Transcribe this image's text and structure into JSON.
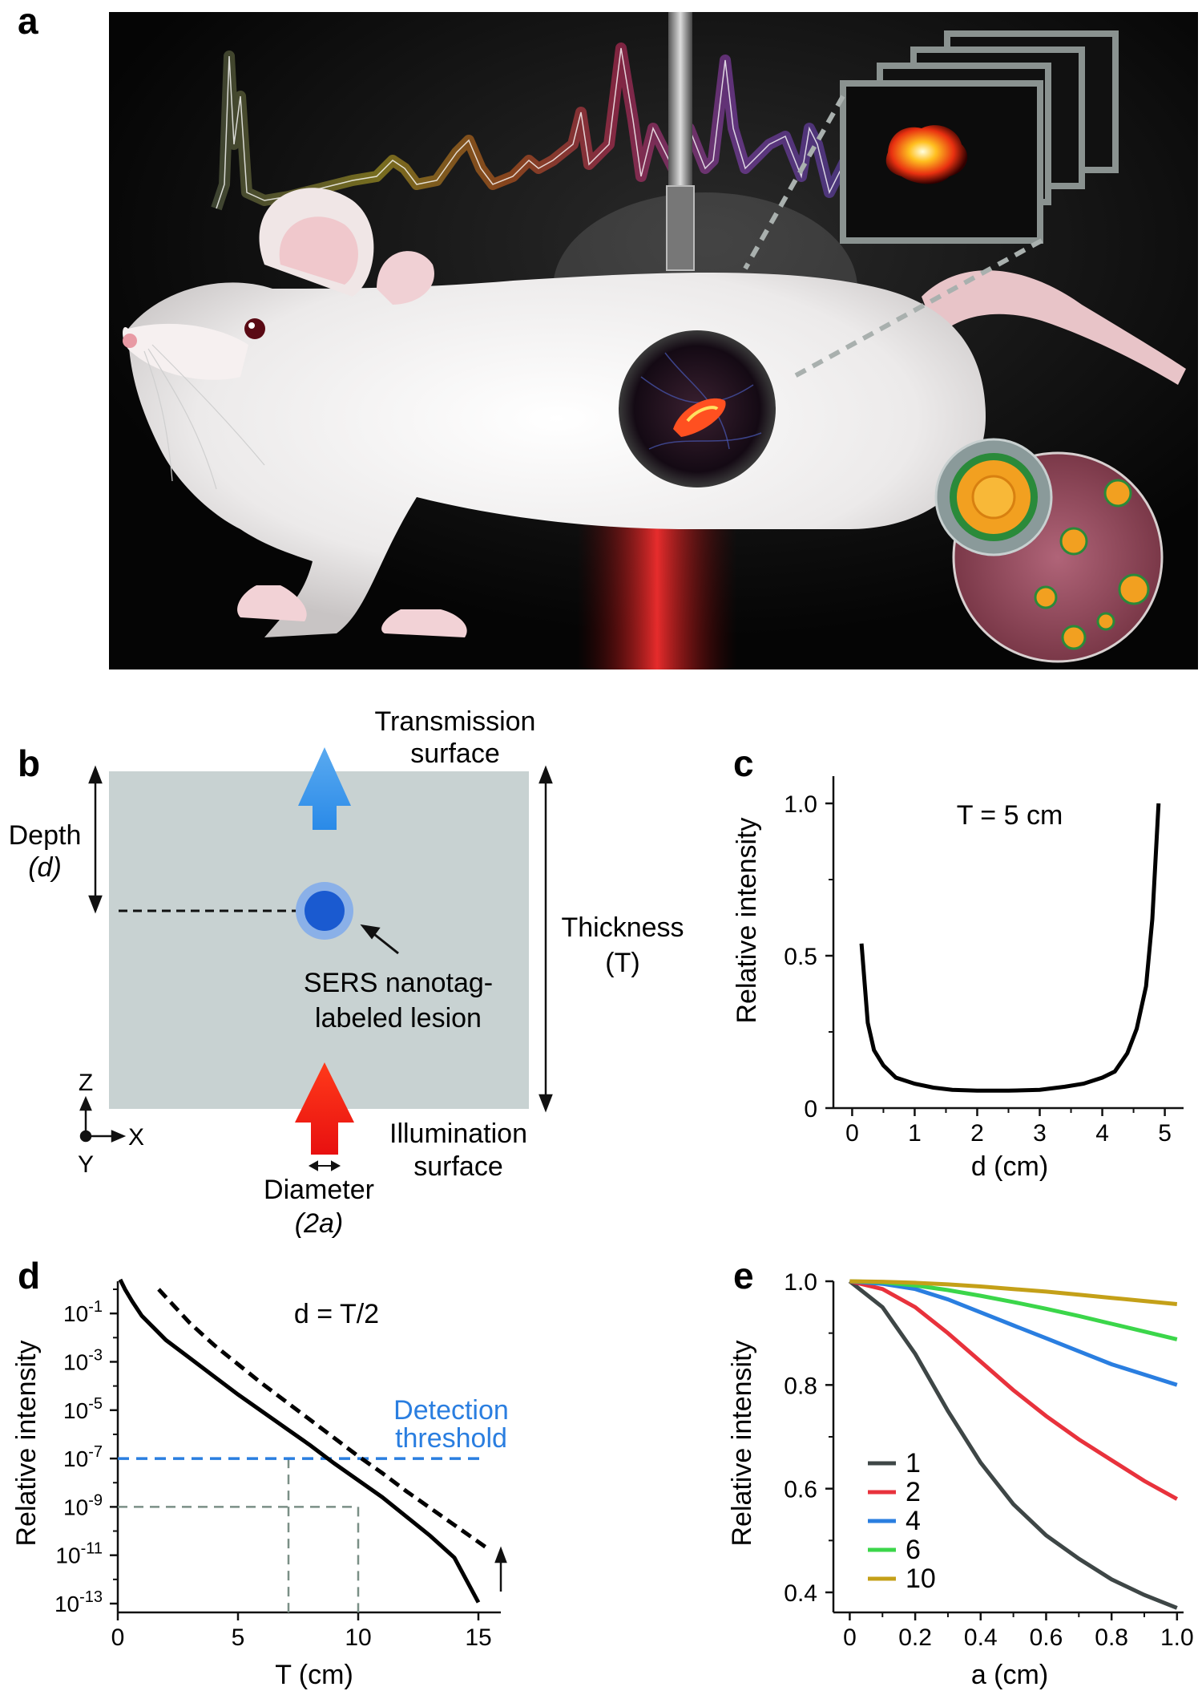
{
  "panel_a": {
    "letter": "a"
  },
  "panel_b": {
    "letter": "b",
    "transmission_label": [
      "Transmission",
      "surface"
    ],
    "depth_label": [
      "Depth",
      "(d)"
    ],
    "thickness_label": [
      "Thickness",
      "(T)"
    ],
    "lesion_label": [
      "SERS nanotag-",
      "labeled lesion"
    ],
    "illumination_label": [
      "Illumination",
      "surface"
    ],
    "diameter_label": [
      "Diameter",
      "(2a)"
    ],
    "axis_z": "Z",
    "axis_x": "X",
    "axis_y": "Y"
  },
  "chart_data": [
    {
      "panel": "c",
      "type": "line",
      "annotation": "T = 5 cm",
      "xlabel": "d (cm)",
      "ylabel": "Relative intensity",
      "xlim": [
        -0.3,
        5.3
      ],
      "ylim": [
        0,
        1.1
      ],
      "xticks": [
        "0",
        "1",
        "2",
        "3",
        "4",
        "5"
      ],
      "yticks": [
        "0",
        "0.5",
        "1.0"
      ],
      "series": [
        {
          "color": "#000000",
          "x": [
            0.15,
            0.25,
            0.35,
            0.5,
            0.7,
            1.0,
            1.3,
            1.6,
            2.0,
            2.5,
            3.0,
            3.4,
            3.7,
            4.0,
            4.2,
            4.4,
            4.55,
            4.7,
            4.8,
            4.9
          ],
          "values": [
            0.54,
            0.28,
            0.19,
            0.14,
            0.1,
            0.08,
            0.067,
            0.06,
            0.057,
            0.057,
            0.06,
            0.07,
            0.08,
            0.1,
            0.12,
            0.18,
            0.26,
            0.4,
            0.62,
            1.0
          ]
        }
      ]
    },
    {
      "panel": "d",
      "type": "line",
      "annotation": "d = T/2",
      "xlabel": "T (cm)",
      "ylabel": "Relative intensity",
      "log_y": true,
      "xlim": [
        0,
        16
      ],
      "ylim_log10": [
        -13,
        0.4
      ],
      "xticks": [
        "0",
        "5",
        "10",
        "15"
      ],
      "yticks": [
        "10-1",
        "10-3",
        "10-5",
        "10-7",
        "10-9",
        "10-11",
        "10-13"
      ],
      "threshold_label": [
        "Detection",
        "threshold"
      ],
      "threshold_value": 1e-07,
      "series": [
        {
          "style": "solid",
          "color": "#000000",
          "x": [
            0.1,
            0.3,
            0.6,
            1,
            1.5,
            2,
            3,
            4,
            5,
            6,
            7,
            8,
            9,
            10,
            11,
            12,
            13,
            14,
            15
          ],
          "log10_values": [
            0.4,
            0,
            -0.5,
            -1.1,
            -1.6,
            -2.1,
            -2.85,
            -3.6,
            -4.35,
            -5.05,
            -5.75,
            -6.45,
            -7.2,
            -7.9,
            -8.6,
            -9.4,
            -10.2,
            -11.1,
            -12.95
          ]
        },
        {
          "style": "dashed",
          "color": "#000000",
          "x": [
            1.7,
            3,
            4,
            5,
            6,
            7,
            8,
            9,
            10,
            11,
            12,
            13,
            14,
            15.5
          ],
          "log10_values": [
            0,
            -1.4,
            -2.3,
            -3.1,
            -3.9,
            -4.65,
            -5.4,
            -6.15,
            -6.9,
            -7.6,
            -8.35,
            -9.05,
            -9.75,
            -10.8
          ]
        }
      ],
      "guides": {
        "color": "#7a8f86",
        "x_values": [
          7.1,
          10
        ],
        "log10_y_values": [
          -7,
          -9
        ]
      }
    },
    {
      "panel": "e",
      "type": "line",
      "xlabel": "a (cm)",
      "ylabel": "Relative intensity",
      "xlim": [
        -0.05,
        1.02
      ],
      "ylim": [
        0.37,
        1.01
      ],
      "xticks": [
        "0",
        "0.2",
        "0.4",
        "0.6",
        "0.8",
        "1.0"
      ],
      "yticks": [
        "0.4",
        "0.6",
        "0.8",
        "1.0"
      ],
      "x": [
        0,
        0.1,
        0.2,
        0.3,
        0.4,
        0.5,
        0.6,
        0.7,
        0.8,
        0.9,
        1.0
      ],
      "series": [
        {
          "name": "1",
          "color": "#3e4646",
          "values": [
            1.0,
            0.95,
            0.86,
            0.75,
            0.65,
            0.57,
            0.51,
            0.465,
            0.425,
            0.395,
            0.37
          ]
        },
        {
          "name": "2",
          "color": "#e8323c",
          "values": [
            1.0,
            0.985,
            0.95,
            0.9,
            0.845,
            0.79,
            0.74,
            0.695,
            0.655,
            0.615,
            0.58
          ]
        },
        {
          "name": "4",
          "color": "#2a7ee0",
          "values": [
            1.0,
            0.995,
            0.985,
            0.965,
            0.94,
            0.915,
            0.89,
            0.865,
            0.84,
            0.82,
            0.8
          ]
        },
        {
          "name": "6",
          "color": "#3bd64a",
          "values": [
            1.0,
            0.998,
            0.992,
            0.983,
            0.972,
            0.96,
            0.947,
            0.933,
            0.918,
            0.903,
            0.888
          ]
        },
        {
          "name": "10",
          "color": "#c4a018",
          "values": [
            1.0,
            0.999,
            0.997,
            0.994,
            0.99,
            0.985,
            0.98,
            0.974,
            0.968,
            0.962,
            0.956
          ]
        }
      ]
    }
  ]
}
